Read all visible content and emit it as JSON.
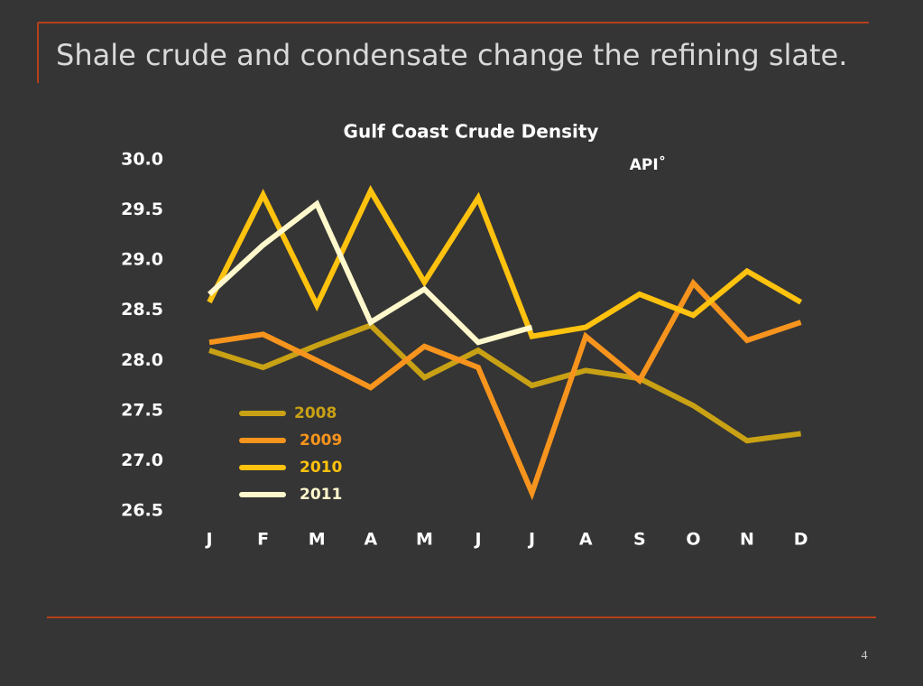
{
  "slide_title": "Shale crude and condensate change the refining slate.",
  "page_number": "4",
  "chart_data": {
    "type": "line",
    "title": "Gulf Coast Crude Density",
    "y_unit_label": "API˚",
    "categories": [
      "J",
      "F",
      "M",
      "A",
      "M",
      "J",
      "J",
      "A",
      "S",
      "O",
      "N",
      "D"
    ],
    "series": [
      {
        "name": "2008",
        "color": "#c9a114",
        "values": [
          28.1,
          27.93,
          28.15,
          28.35,
          27.83,
          28.1,
          27.75,
          27.9,
          27.82,
          27.55,
          27.2,
          27.27
        ]
      },
      {
        "name": "2009",
        "color": "#f7941d",
        "values": [
          28.18,
          28.26,
          28.0,
          27.73,
          28.14,
          27.93,
          26.68,
          28.24,
          27.8,
          28.77,
          28.2,
          28.38
        ]
      },
      {
        "name": "2010",
        "color": "#ffc20e",
        "values": [
          28.58,
          29.65,
          28.55,
          29.69,
          28.78,
          29.62,
          28.24,
          28.33,
          28.66,
          28.45,
          28.89,
          28.58
        ]
      },
      {
        "name": "2011",
        "color": "#fff8cc",
        "values": [
          28.66,
          29.15,
          29.56,
          28.38,
          28.71,
          28.18,
          28.33,
          null,
          null,
          null,
          null,
          null
        ]
      }
    ],
    "ylim": [
      26.5,
      30.0
    ],
    "yticks": [
      {
        "value": 26.5,
        "label": "26.5"
      },
      {
        "value": 27,
        "label": "27.0"
      },
      {
        "value": 27.5,
        "label": "27.5"
      },
      {
        "value": 28,
        "label": "28.0"
      },
      {
        "value": 28.5,
        "label": "28.5"
      },
      {
        "value": 29,
        "label": "29.0"
      },
      {
        "value": 29.5,
        "label": "29.5"
      },
      {
        "value": 30,
        "label": "30.0"
      }
    ],
    "grid": false,
    "legend": "lower left"
  }
}
